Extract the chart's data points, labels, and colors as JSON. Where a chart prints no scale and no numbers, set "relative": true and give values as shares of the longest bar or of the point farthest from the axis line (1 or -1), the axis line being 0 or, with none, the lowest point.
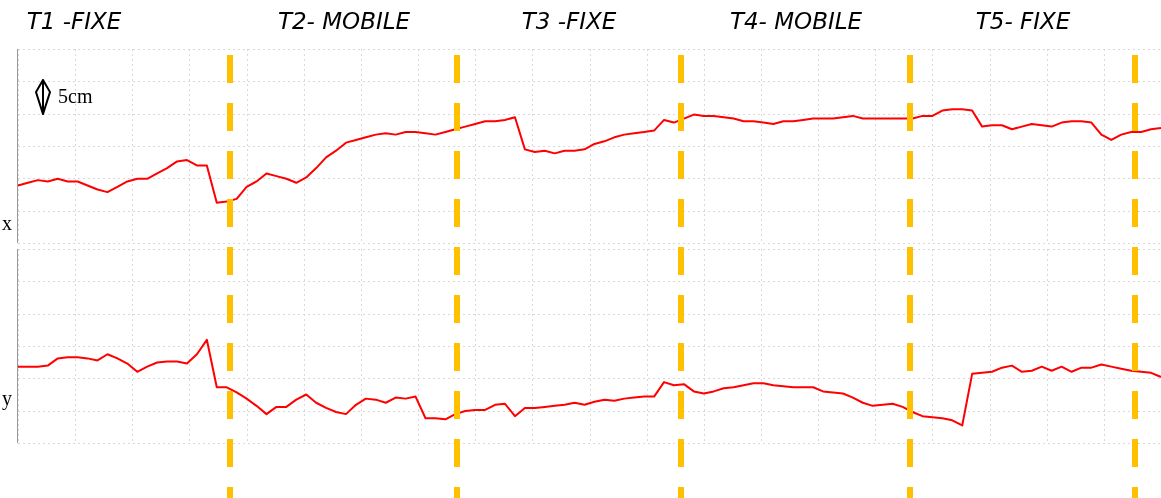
{
  "chart_data": [
    {
      "type": "line",
      "relative": true,
      "ylabel": "x",
      "grid": true,
      "marker": "none",
      "line_style": "solid",
      "categories": [
        null,
        null,
        null,
        null,
        null,
        null,
        null,
        null,
        null,
        null,
        null,
        null,
        null,
        null,
        null,
        null,
        null,
        null,
        null,
        null,
        null,
        null,
        null,
        null,
        null,
        null,
        null,
        null,
        null,
        null,
        null,
        null,
        null,
        null,
        null,
        null,
        null,
        null,
        null,
        null,
        null,
        null,
        null,
        null,
        null,
        null,
        null,
        null,
        null,
        null,
        null,
        null,
        null,
        null,
        null,
        null,
        null,
        null,
        null,
        null,
        null,
        null,
        null,
        null,
        null,
        null,
        null,
        null,
        null,
        null,
        null,
        null,
        null,
        null,
        null,
        null,
        null,
        null,
        null,
        null,
        null,
        null,
        null,
        null,
        null,
        null,
        null,
        null,
        null,
        null,
        null,
        null,
        null,
        null,
        null,
        null,
        null,
        null,
        null,
        null,
        null,
        null,
        null,
        null,
        null,
        null,
        null,
        null,
        null,
        null,
        null,
        null,
        null,
        null,
        null,
        null
      ],
      "series": [
        {
          "color": "#ff0000",
          "values": [
            0.43,
            0.45,
            0.47,
            0.46,
            0.48,
            0.46,
            0.46,
            0.43,
            0.4,
            0.38,
            0.42,
            0.46,
            0.48,
            0.48,
            0.52,
            0.56,
            0.61,
            0.62,
            0.58,
            0.58,
            0.3,
            0.31,
            0.33,
            0.42,
            0.46,
            0.52,
            0.5,
            0.48,
            0.45,
            0.49,
            0.56,
            0.64,
            0.69,
            0.75,
            0.77,
            0.79,
            0.81,
            0.82,
            0.81,
            0.83,
            0.83,
            0.82,
            0.81,
            0.83,
            0.85,
            0.87,
            0.89,
            0.91,
            0.91,
            0.92,
            0.94,
            0.7,
            0.68,
            0.69,
            0.67,
            0.69,
            0.69,
            0.7,
            0.74,
            0.76,
            0.79,
            0.81,
            0.82,
            0.83,
            0.84,
            0.92,
            0.9,
            0.93,
            0.96,
            0.95,
            0.95,
            0.94,
            0.93,
            0.91,
            0.91,
            0.9,
            0.89,
            0.91,
            0.91,
            0.92,
            0.93,
            0.93,
            0.93,
            0.94,
            0.95,
            0.93,
            0.93,
            0.93,
            0.93,
            0.93,
            0.93,
            0.95,
            0.95,
            0.99,
            1.0,
            1.0,
            0.99,
            0.87,
            0.88,
            0.88,
            0.85,
            0.87,
            0.89,
            0.88,
            0.87,
            0.9,
            0.91,
            0.91,
            0.9,
            0.81,
            0.77,
            0.81,
            0.83,
            0.83,
            0.85,
            0.86
          ]
        }
      ],
      "annotations": [
        "T1 -FIXE",
        "T2- MOBILE",
        "T3 -FIXE",
        "T4- MOBILE",
        "T5- FIXE",
        "5cm"
      ]
    },
    {
      "type": "line",
      "relative": true,
      "ylabel": "y",
      "grid": true,
      "marker": "none",
      "line_style": "solid",
      "categories": [
        null,
        null,
        null,
        null,
        null,
        null,
        null,
        null,
        null,
        null,
        null,
        null,
        null,
        null,
        null,
        null,
        null,
        null,
        null,
        null,
        null,
        null,
        null,
        null,
        null,
        null,
        null,
        null,
        null,
        null,
        null,
        null,
        null,
        null,
        null,
        null,
        null,
        null,
        null,
        null,
        null,
        null,
        null,
        null,
        null,
        null,
        null,
        null,
        null,
        null,
        null,
        null,
        null,
        null,
        null,
        null,
        null,
        null,
        null,
        null,
        null,
        null,
        null,
        null,
        null,
        null,
        null,
        null,
        null,
        null,
        null,
        null,
        null,
        null,
        null,
        null,
        null,
        null,
        null,
        null,
        null,
        null,
        null,
        null,
        null,
        null,
        null,
        null,
        null,
        null,
        null,
        null,
        null,
        null,
        null,
        null,
        null,
        null,
        null,
        null,
        null,
        null,
        null,
        null,
        null,
        null,
        null,
        null,
        null,
        null,
        null,
        null,
        null,
        null,
        null,
        null
      ],
      "series": [
        {
          "color": "#ff0000",
          "values": [
            0.74,
            0.74,
            0.74,
            0.75,
            0.82,
            0.83,
            0.83,
            0.82,
            0.8,
            0.86,
            0.82,
            0.77,
            0.69,
            0.74,
            0.78,
            0.79,
            0.79,
            0.77,
            0.86,
            1.0,
            0.54,
            0.54,
            0.49,
            0.43,
            0.36,
            0.28,
            0.35,
            0.35,
            0.42,
            0.47,
            0.39,
            0.34,
            0.3,
            0.28,
            0.37,
            0.43,
            0.42,
            0.39,
            0.44,
            0.43,
            0.45,
            0.24,
            0.24,
            0.23,
            0.28,
            0.31,
            0.32,
            0.32,
            0.37,
            0.38,
            0.26,
            0.34,
            0.34,
            0.35,
            0.36,
            0.37,
            0.39,
            0.37,
            0.4,
            0.42,
            0.41,
            0.43,
            0.44,
            0.45,
            0.45,
            0.59,
            0.56,
            0.57,
            0.5,
            0.48,
            0.5,
            0.53,
            0.54,
            0.56,
            0.58,
            0.58,
            0.56,
            0.55,
            0.54,
            0.54,
            0.54,
            0.5,
            0.49,
            0.48,
            0.44,
            0.39,
            0.36,
            0.37,
            0.38,
            0.35,
            0.3,
            0.26,
            0.25,
            0.24,
            0.22,
            0.17,
            0.67,
            0.68,
            0.69,
            0.73,
            0.75,
            0.69,
            0.7,
            0.74,
            0.7,
            0.74,
            0.69,
            0.73,
            0.73,
            0.76,
            0.74,
            0.72,
            0.7,
            0.69,
            0.68,
            0.64
          ]
        }
      ]
    }
  ]
}
